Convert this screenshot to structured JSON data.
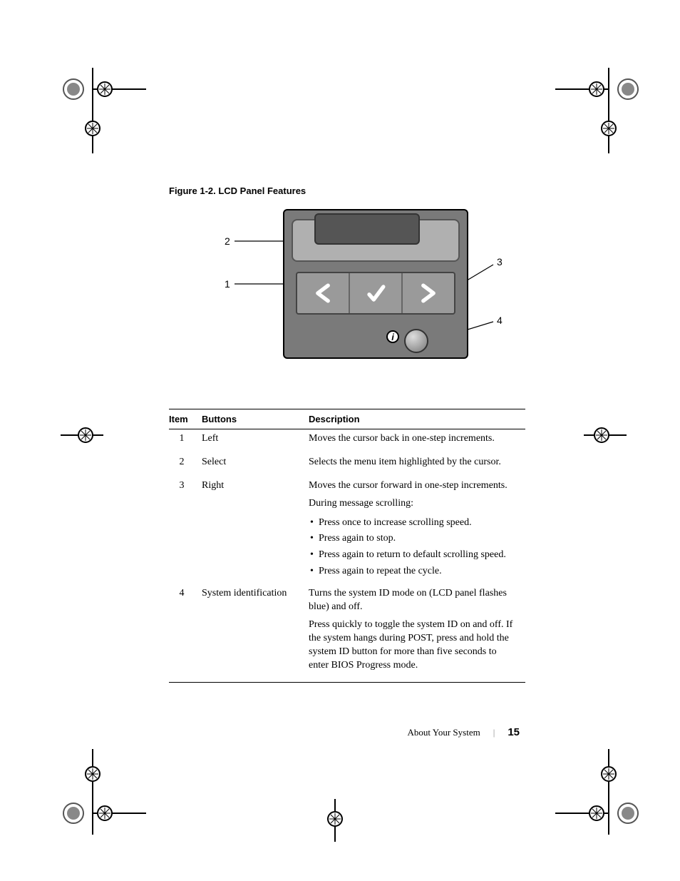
{
  "figure": {
    "caption": "Figure 1-2.    LCD Panel Features",
    "callouts": {
      "c1": "1",
      "c2": "2",
      "c3": "3",
      "c4": "4"
    }
  },
  "table": {
    "headers": {
      "item": "Item",
      "buttons": "Buttons",
      "description": "Description"
    },
    "rows": [
      {
        "item": "1",
        "button": "Left",
        "desc": [
          {
            "type": "p",
            "text": "Moves the cursor back in one-step increments."
          }
        ]
      },
      {
        "item": "2",
        "button": "Select",
        "desc": [
          {
            "type": "p",
            "text": "Selects the menu item highlighted by the cursor."
          }
        ]
      },
      {
        "item": "3",
        "button": "Right",
        "desc": [
          {
            "type": "p",
            "text": "Moves the cursor forward in one-step increments."
          },
          {
            "type": "p",
            "text": "During message scrolling:"
          },
          {
            "type": "li",
            "text": "Press once to increase scrolling speed."
          },
          {
            "type": "li",
            "text": "Press again to stop."
          },
          {
            "type": "li",
            "text": "Press again to return to default scrolling speed."
          },
          {
            "type": "li",
            "text": "Press again to repeat the cycle."
          }
        ]
      },
      {
        "item": "4",
        "button": "System identification",
        "desc": [
          {
            "type": "p",
            "text": "Turns the system ID mode on (LCD panel flashes blue) and off."
          },
          {
            "type": "p",
            "text": "Press quickly to toggle the system ID on and off. If the system hangs during POST, press and hold the system ID button for more than five seconds to enter BIOS Progress mode."
          }
        ]
      }
    ]
  },
  "footer": {
    "section": "About Your System",
    "page": "15"
  },
  "colors": {
    "panel_body": "#7a7a7a",
    "panel_frame": "#b0b0b0",
    "panel_screen": "#555555",
    "icon_stroke": "#ffffff",
    "text": "#000000"
  }
}
